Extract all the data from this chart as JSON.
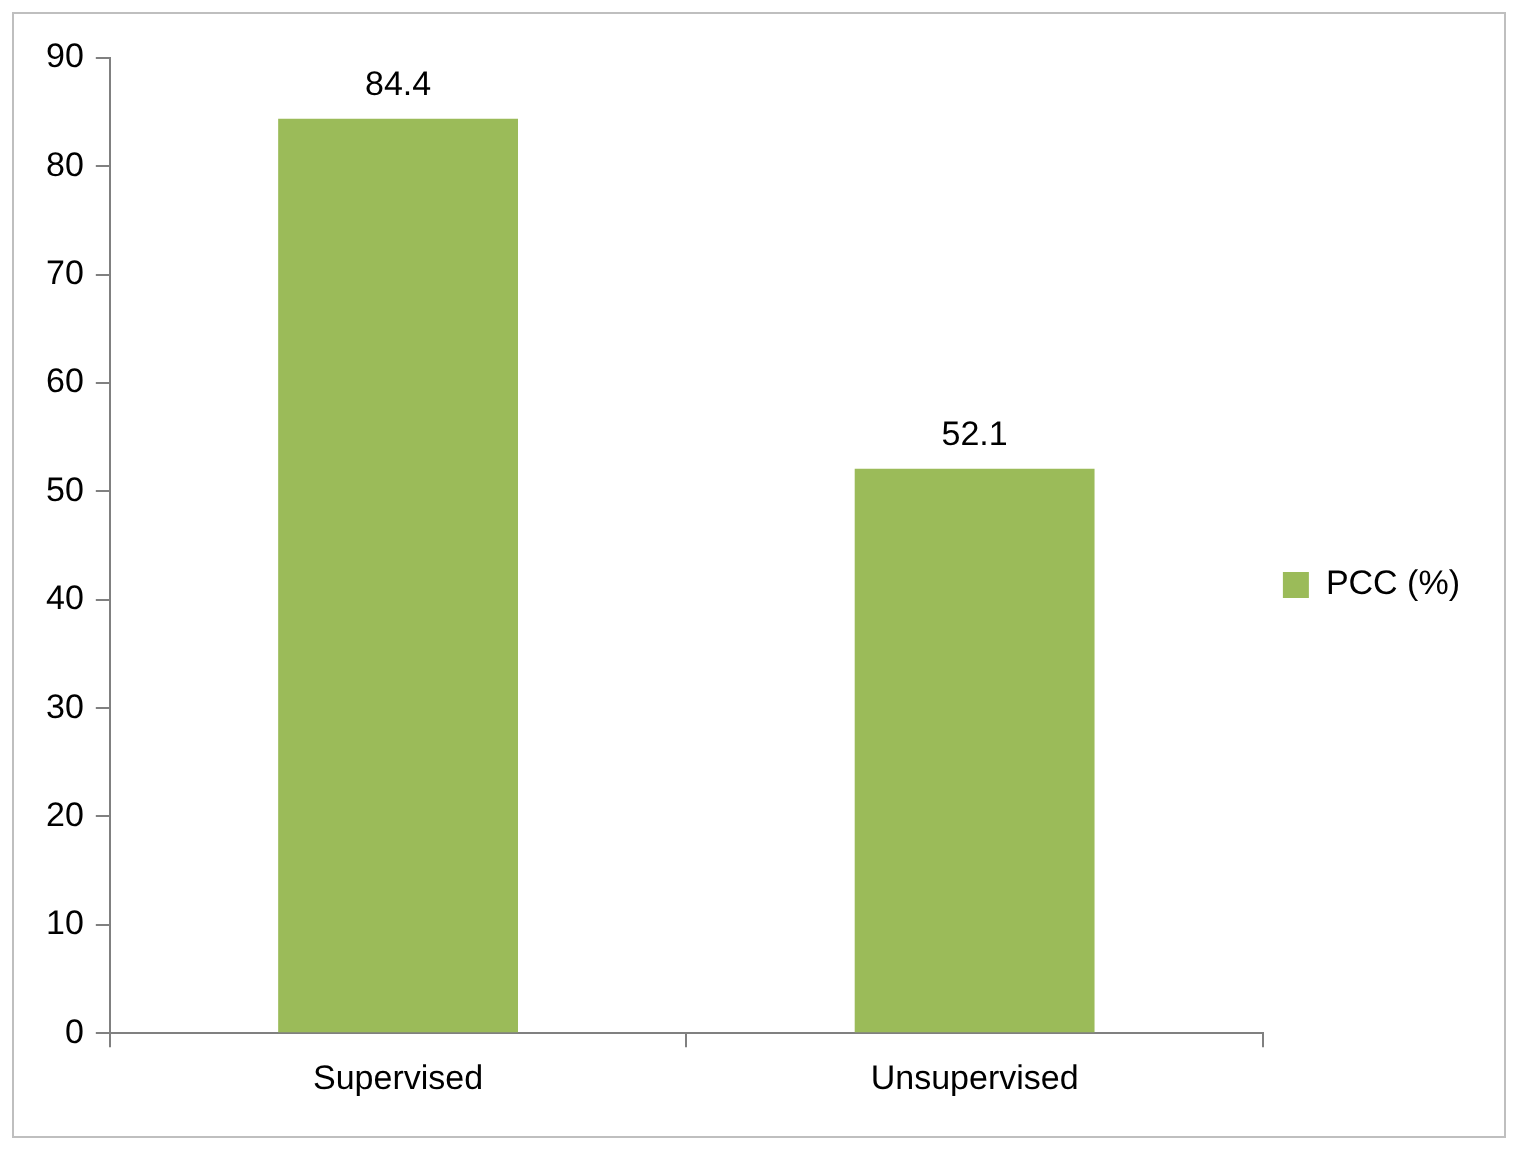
{
  "chart_data": {
    "type": "bar",
    "categories": [
      "Supervised",
      "Unsupervised"
    ],
    "series": [
      {
        "name": "PCC (%)",
        "color": "#9bbb59",
        "values": [
          84.4,
          52.1
        ]
      }
    ],
    "ylim": [
      0,
      90
    ],
    "yticks": [
      0,
      10,
      20,
      30,
      40,
      50,
      60,
      70,
      80,
      90
    ],
    "grid": false,
    "legend": "right",
    "data_labels": true
  }
}
